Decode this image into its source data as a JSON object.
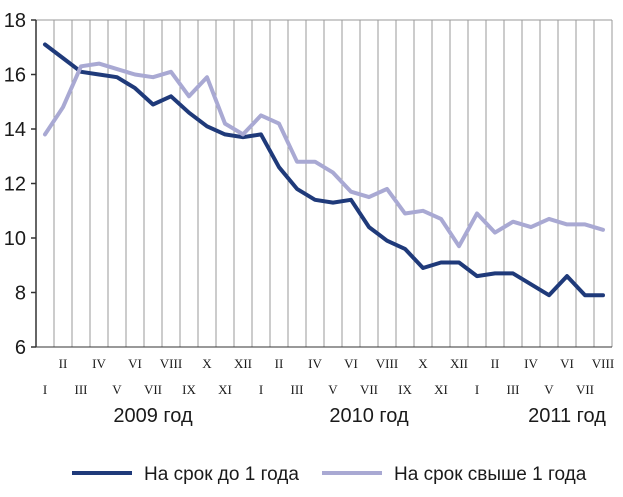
{
  "chart_data": {
    "type": "line",
    "title": "",
    "xlabel": "",
    "ylabel": "",
    "ylim": [
      6,
      18
    ],
    "y_ticks": [
      "6",
      "8",
      "10",
      "12",
      "14",
      "16",
      "18"
    ],
    "grid": "vertical",
    "legend_position": "bottom",
    "x_tick_labels": [
      "I",
      "II",
      "III",
      "IV",
      "V",
      "VI",
      "VII",
      "VIII",
      "IX",
      "X",
      "XI",
      "XII",
      "I",
      "II",
      "III",
      "IV",
      "V",
      "VI",
      "VII",
      "VIII",
      "IX",
      "X",
      "XI",
      "XII",
      "I",
      "II",
      "III",
      "IV",
      "V",
      "VI",
      "VII",
      "VIII"
    ],
    "year_labels": [
      {
        "text": "2009 год",
        "month_index": 6
      },
      {
        "text": "2010 год",
        "month_index": 18
      },
      {
        "text": "2011 год",
        "month_index": 29
      }
    ],
    "series": [
      {
        "name": "На срок до 1 года",
        "color": "#1f3a7a",
        "values": [
          17.1,
          16.6,
          16.1,
          16.0,
          15.9,
          15.5,
          14.9,
          15.2,
          14.6,
          14.1,
          13.8,
          13.7,
          13.8,
          12.6,
          11.8,
          11.4,
          11.3,
          11.4,
          10.4,
          9.9,
          9.6,
          8.9,
          9.1,
          9.1,
          8.6,
          8.7,
          8.7,
          8.3,
          7.9,
          8.6,
          7.9,
          7.9
        ]
      },
      {
        "name": "На срок свыше 1 года",
        "color": "#a9a9d3",
        "values": [
          13.8,
          14.8,
          16.3,
          16.4,
          16.2,
          16.0,
          15.9,
          16.1,
          15.2,
          15.9,
          14.2,
          13.8,
          14.5,
          14.2,
          12.8,
          12.8,
          12.4,
          11.7,
          11.5,
          11.8,
          10.9,
          11.0,
          10.7,
          9.7,
          10.9,
          10.2,
          10.6,
          10.4,
          10.7,
          10.5,
          10.5,
          10.3
        ]
      }
    ]
  }
}
